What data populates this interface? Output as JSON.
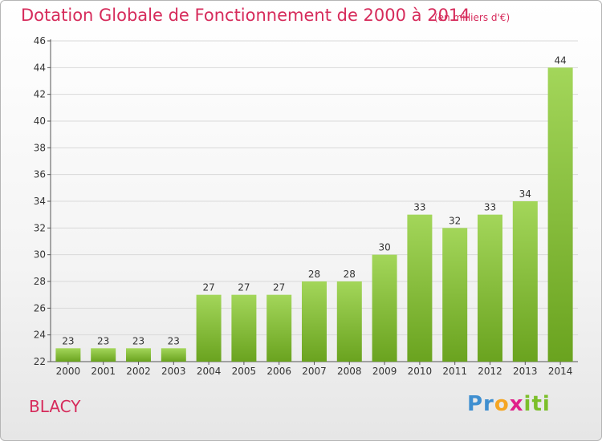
{
  "title": "Dotation Globale de Fonctionnement de 2000 à 2014",
  "subtitle": "(en milliers d'€)",
  "place": "BLACY",
  "logo": {
    "text": "Proxiti"
  },
  "chart_data": {
    "type": "bar",
    "title": "Dotation Globale de Fonctionnement de 2000 à 2014",
    "subtitle": "(en milliers d'€)",
    "xlabel": "",
    "ylabel": "",
    "categories": [
      "2000",
      "2001",
      "2002",
      "2003",
      "2004",
      "2005",
      "2006",
      "2007",
      "2008",
      "2009",
      "2010",
      "2011",
      "2012",
      "2013",
      "2014"
    ],
    "values": [
      23,
      23,
      23,
      23,
      27,
      27,
      27,
      28,
      28,
      30,
      33,
      32,
      33,
      34,
      44
    ],
    "ylim": [
      22,
      46
    ],
    "yticks": [
      22,
      24,
      26,
      28,
      30,
      32,
      34,
      36,
      38,
      40,
      42,
      44,
      46
    ],
    "grid": true,
    "bar_color": "#7ab832",
    "bar_color_light": "#a3d65a"
  }
}
